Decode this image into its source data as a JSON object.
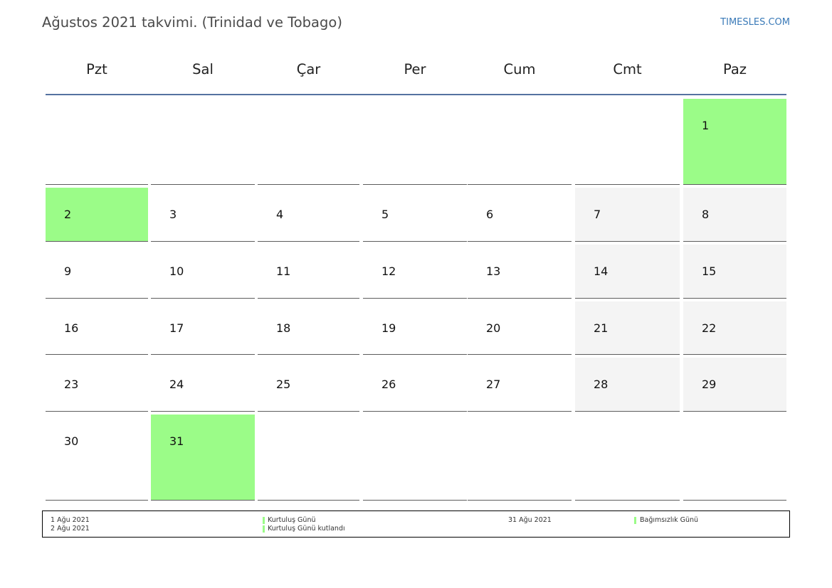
{
  "header": {
    "title": "Ağustos 2021 takvimi. (Trinidad ve Tobago)",
    "site": "TIMESLES.COM"
  },
  "weekdays": [
    "Pzt",
    "Sal",
    "Çar",
    "Per",
    "Cum",
    "Cmt",
    "Paz"
  ],
  "calendar": {
    "first_weekday_index": 6,
    "days_in_month": 31,
    "holidays": [
      1,
      2,
      31
    ]
  },
  "legend": {
    "left": [
      {
        "date": "1 Ağu 2021",
        "name": "Kurtuluş Günü"
      },
      {
        "date": "2 Ağu 2021",
        "name": "Kurtuluş Günü kutlandı"
      }
    ],
    "right": [
      {
        "date": "31 Ağu 2021",
        "name": "Bağımsızlık Günü"
      }
    ]
  },
  "colors": {
    "holiday": "#9bfc88",
    "weekend": "#f4f4f4",
    "accent_line": "#5572a0",
    "link": "#3a7ab8"
  }
}
